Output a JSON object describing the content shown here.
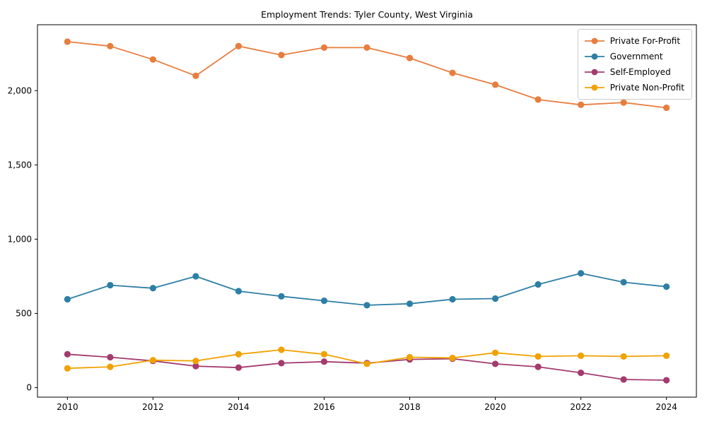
{
  "chart": {
    "title": "Employment Trends: Tyler County, West Virginia"
  },
  "chart_data": {
    "type": "line",
    "title": "Employment Trends: Tyler County, West Virginia",
    "xlabel": "",
    "ylabel": "",
    "x": [
      2010,
      2011,
      2012,
      2013,
      2014,
      2015,
      2016,
      2017,
      2018,
      2019,
      2020,
      2021,
      2022,
      2023,
      2024
    ],
    "series": [
      {
        "name": "Private For-Profit",
        "color": "#e87d3e",
        "values": [
          2330,
          2300,
          2210,
          2100,
          2300,
          2240,
          2290,
          2290,
          2220,
          2120,
          2040,
          1940,
          1905,
          1920,
          1885
        ]
      },
      {
        "name": "Government",
        "color": "#2d7fa5",
        "values": [
          595,
          690,
          670,
          750,
          650,
          615,
          585,
          555,
          565,
          595,
          600,
          695,
          770,
          710,
          680
        ]
      },
      {
        "name": "Self-Employed",
        "color": "#a33b6e",
        "values": [
          225,
          205,
          180,
          145,
          135,
          165,
          175,
          165,
          190,
          195,
          160,
          140,
          100,
          55,
          50
        ]
      },
      {
        "name": "Private Non-Profit",
        "color": "#f0a202",
        "values": [
          130,
          140,
          185,
          180,
          225,
          255,
          225,
          160,
          205,
          200,
          235,
          210,
          215,
          210,
          215
        ]
      }
    ],
    "xlim": [
      2009.3,
      2024.7
    ],
    "ylim": [
      -64,
      2444
    ],
    "xticks": {
      "values": [
        2010,
        2012,
        2014,
        2016,
        2018,
        2020,
        2022,
        2024
      ],
      "labels": [
        "2010",
        "2012",
        "2014",
        "2016",
        "2018",
        "2020",
        "2022",
        "2024"
      ]
    },
    "yticks": {
      "values": [
        0,
        500,
        1000,
        1500,
        2000
      ],
      "labels": [
        "0",
        "500",
        "1,000",
        "1,500",
        "2,000"
      ]
    },
    "legend_position": "upper right",
    "grid": false,
    "marker": "circle",
    "line_width": 1.8,
    "marker_radius": 4.6,
    "spine_color": "#000000",
    "tick_label_color": "#000000",
    "background": "#ffffff"
  }
}
